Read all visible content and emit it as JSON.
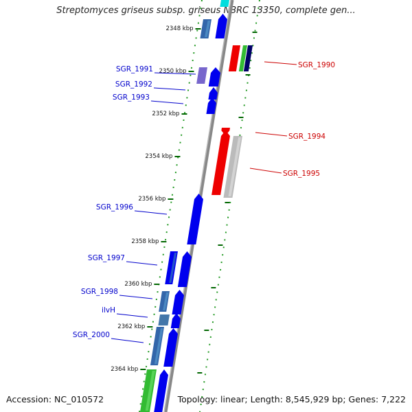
{
  "title": "Streptomyces griseus subsp. griseus NBRC 13350, complete gen...",
  "footer": {
    "accession": "Accession: NC_010572",
    "summary": "Topology: linear; Length: 8,545,929 bp; Genes: 7,222"
  },
  "colors": {
    "left_label": "#0000cc",
    "right_label": "#cc0000",
    "axis_tick": "#006600",
    "gene_blue": "#0000ee",
    "gene_red": "#ee0000",
    "gene_green": "#33bb33",
    "gene_gray": "#bbbbbb",
    "gene_purple": "#7766cc",
    "gene_steel": "#3366aa"
  },
  "axis_ticks": [
    "2348 kbp",
    "2350 kbp",
    "2352 kbp",
    "2354 kbp",
    "2356 kbp",
    "2358 kbp",
    "2360 kbp",
    "2362 kbp",
    "2364 kbp"
  ],
  "left_labels": [
    "SGR_1991",
    "SGR_1992",
    "SGR_1993",
    "SGR_1996",
    "SGR_1997",
    "SGR_1998",
    "ilvH",
    "SGR_2000"
  ],
  "right_labels": [
    "SGR_1990",
    "SGR_1994",
    "SGR_1995"
  ]
}
